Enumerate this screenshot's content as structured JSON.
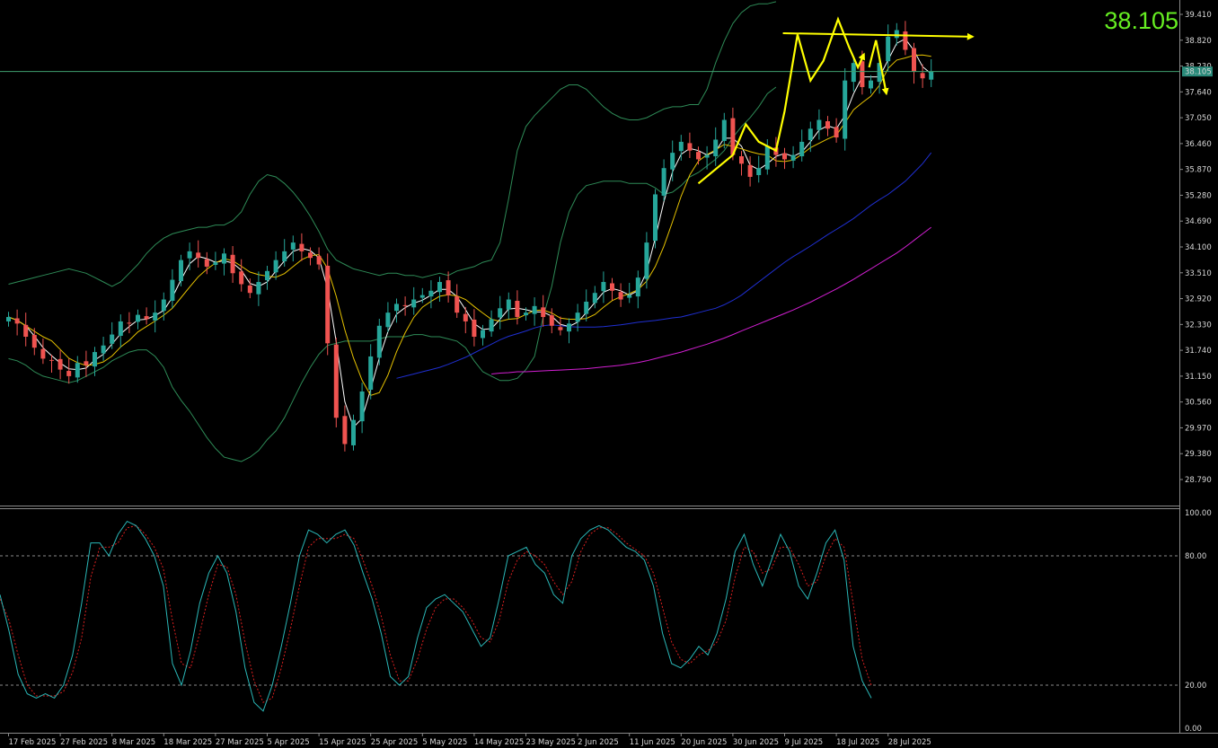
{
  "colors": {
    "background": "#000000",
    "candle_up": "#26a69a",
    "candle_down": "#ef5350",
    "bollinger": "#2e8b57",
    "ma_fast": "#ffffff",
    "ma_slow": "#e6c200",
    "ma_50": "#1f2fd1",
    "ma_200": "#d21fd2",
    "stoch_k": "#2ab7b7",
    "stoch_d": "#d91f1f",
    "annotation": "#ffff00",
    "price_line": "#3f9f6f",
    "last_price_text": "#66ee22"
  },
  "last_price": {
    "big_label": "38.105",
    "tag_label": "38.105",
    "value": 38.105
  },
  "chart_data": [
    {
      "type": "candlestick",
      "title": "",
      "y_ticks": [
        "39.410",
        "38.820",
        "38.230",
        "37.640",
        "37.050",
        "36.460",
        "35.870",
        "35.280",
        "34.690",
        "34.100",
        "33.510",
        "32.920",
        "32.330",
        "31.740",
        "31.150",
        "30.560",
        "29.970",
        "29.380",
        "28.790"
      ],
      "ylim": [
        28.5,
        39.7
      ],
      "x_ticks": [
        "17 Feb 2025",
        "27 Feb 2025",
        "8 Mar 2025",
        "18 Mar 2025",
        "27 Mar 2025",
        "5 Apr 2025",
        "15 Apr 2025",
        "25 Apr 2025",
        "5 May 2025",
        "14 May 2025",
        "23 May 2025",
        "2 Jun 2025",
        "11 Jun 2025",
        "20 Jun 2025",
        "30 Jun 2025",
        "9 Jul 2025",
        "18 Jul 2025",
        "28 Jul 2025"
      ],
      "x_tick_bars": [
        0,
        6,
        12,
        18,
        24,
        30,
        36,
        42,
        48,
        54,
        60,
        66,
        72,
        78,
        84,
        90,
        96,
        102
      ],
      "close": [
        32.5,
        32.35,
        32.05,
        31.8,
        31.55,
        31.5,
        31.3,
        31.15,
        31.45,
        31.4,
        31.7,
        31.85,
        32.1,
        32.4,
        32.35,
        32.55,
        32.45,
        32.6,
        32.9,
        33.35,
        33.8,
        34.0,
        33.85,
        33.65,
        33.75,
        33.95,
        33.5,
        33.25,
        33.05,
        33.3,
        33.55,
        33.8,
        34.0,
        34.2,
        34.0,
        33.85,
        33.7,
        31.9,
        30.2,
        29.6,
        30.15,
        30.8,
        31.6,
        32.3,
        32.6,
        32.8,
        32.75,
        32.9,
        33.0,
        33.1,
        33.3,
        33.0,
        32.6,
        32.4,
        32.05,
        32.2,
        32.45,
        32.7,
        32.9,
        32.5,
        32.6,
        32.75,
        32.5,
        32.3,
        32.2,
        32.35,
        32.6,
        32.85,
        33.05,
        33.3,
        33.1,
        32.9,
        33.0,
        33.4,
        34.2,
        35.3,
        35.9,
        36.25,
        36.5,
        36.3,
        36.1,
        36.2,
        36.55,
        37.0,
        36.2,
        36.0,
        35.7,
        35.9,
        36.4,
        36.2,
        36.1,
        36.2,
        36.5,
        36.8,
        37.0,
        36.8,
        36.6,
        37.9,
        38.3,
        37.75,
        37.9,
        38.3,
        38.9,
        39.05,
        38.6,
        38.1,
        37.95,
        38.105
      ],
      "series": [
        {
          "name": "",
          "kind": "bollinger_upper",
          "values": [
            33.25,
            33.3,
            33.35,
            33.4,
            33.45,
            33.5,
            33.55,
            33.6,
            33.55,
            33.5,
            33.4,
            33.3,
            33.2,
            33.3,
            33.5,
            33.7,
            33.95,
            34.15,
            34.3,
            34.4,
            34.45,
            34.5,
            34.55,
            34.55,
            34.6,
            34.6,
            34.7,
            34.9,
            35.3,
            35.6,
            35.75,
            35.7,
            35.55,
            35.35,
            35.1,
            34.8,
            34.45,
            34.05,
            33.8,
            33.7,
            33.6,
            33.55,
            33.5,
            33.45,
            33.5,
            33.5,
            33.45,
            33.45,
            33.4,
            33.45,
            33.5,
            33.45,
            33.55,
            33.6,
            33.65,
            33.75,
            33.8,
            34.2,
            35.2,
            36.3,
            36.85,
            37.1,
            37.3,
            37.5,
            37.7,
            37.8,
            37.8,
            37.7,
            37.5,
            37.3,
            37.15,
            37.05,
            37.0,
            37.0,
            37.05,
            37.15,
            37.25,
            37.3,
            37.3,
            37.35,
            37.35,
            37.7,
            38.3,
            38.8,
            39.2,
            39.45,
            39.6,
            39.65,
            39.65,
            39.7
          ]
        },
        {
          "name": "",
          "kind": "bollinger_lower",
          "values": [
            31.55,
            31.5,
            31.4,
            31.25,
            31.15,
            31.1,
            31.05,
            31.0,
            31.05,
            31.15,
            31.25,
            31.35,
            31.5,
            31.6,
            31.7,
            31.75,
            31.75,
            31.6,
            31.35,
            30.9,
            30.6,
            30.35,
            30.05,
            29.75,
            29.5,
            29.3,
            29.25,
            29.2,
            29.3,
            29.45,
            29.7,
            29.9,
            30.2,
            30.6,
            31.0,
            31.35,
            31.65,
            31.85,
            31.9,
            31.95,
            31.95,
            31.95,
            31.95,
            32.0,
            32.05,
            32.05,
            32.05,
            32.1,
            32.1,
            32.05,
            32.05,
            32.0,
            31.95,
            31.8,
            31.5,
            31.25,
            31.15,
            31.05,
            31.05,
            31.1,
            31.3,
            31.6,
            32.5,
            33.2,
            34.2,
            34.9,
            35.3,
            35.5,
            35.55,
            35.6,
            35.6,
            35.6,
            35.55,
            35.55,
            35.55,
            35.45,
            35.3,
            35.35,
            35.5,
            35.7,
            35.8,
            35.95,
            36.1,
            36.3,
            36.6,
            36.85,
            37.05,
            37.3,
            37.6,
            37.75
          ]
        },
        {
          "name": "",
          "kind": "ma_50",
          "values": [
            31.1,
            31.15,
            31.2,
            31.25,
            31.3,
            31.35,
            31.42,
            31.5,
            31.58,
            31.68,
            31.78,
            31.88,
            31.98,
            32.06,
            32.12,
            32.18,
            32.25,
            32.3,
            32.32,
            32.3,
            32.28,
            32.27,
            32.27,
            32.27,
            32.28,
            32.3,
            32.32,
            32.35,
            32.38,
            32.4,
            32.42,
            32.45,
            32.48,
            32.5,
            32.55,
            32.6,
            32.65,
            32.7,
            32.78,
            32.88,
            33.0,
            33.15,
            33.3,
            33.45,
            33.6,
            33.75,
            33.88,
            34.0,
            34.12,
            34.25,
            34.38,
            34.5,
            34.62,
            34.75,
            34.9,
            35.05,
            35.18,
            35.3,
            35.45,
            35.6,
            35.8,
            36.0,
            36.25
          ]
        },
        {
          "name": "",
          "kind": "ma_200",
          "values": [
            31.2,
            31.22,
            31.23,
            31.25,
            31.25,
            31.26,
            31.27,
            31.28,
            31.29,
            31.3,
            31.31,
            31.32,
            31.34,
            31.36,
            31.38,
            31.4,
            31.43,
            31.46,
            31.5,
            31.55,
            31.6,
            31.65,
            31.7,
            31.76,
            31.82,
            31.88,
            31.95,
            32.02,
            32.1,
            32.18,
            32.26,
            32.34,
            32.42,
            32.5,
            32.58,
            32.66,
            32.75,
            32.84,
            32.94,
            33.04,
            33.14,
            33.25,
            33.36,
            33.48,
            33.6,
            33.72,
            33.84,
            33.96,
            34.1,
            34.25,
            34.4,
            34.55
          ]
        }
      ]
    },
    {
      "type": "line",
      "title": "",
      "y_ticks": [
        "100.00",
        "80.00",
        "20.00",
        "0.00"
      ],
      "ylim": [
        0,
        100
      ],
      "levels": [
        80,
        20
      ],
      "series": [
        {
          "name": "",
          "kind": "stoch_k",
          "values": [
            62,
            45,
            25,
            16,
            14,
            16,
            14,
            20,
            34,
            58,
            86,
            86,
            80,
            90,
            96,
            94,
            88,
            80,
            66,
            30,
            20,
            36,
            58,
            72,
            80,
            72,
            54,
            28,
            12,
            8,
            20,
            38,
            58,
            80,
            92,
            90,
            86,
            90,
            92,
            85,
            72,
            60,
            44,
            24,
            20,
            24,
            42,
            56,
            60,
            62,
            58,
            54,
            46,
            38,
            42,
            60,
            80,
            82,
            84,
            76,
            72,
            62,
            58,
            80,
            88,
            92,
            94,
            92,
            88,
            84,
            82,
            78,
            66,
            44,
            30,
            28,
            32,
            38,
            34,
            44,
            60,
            82,
            90,
            76,
            66,
            78,
            90,
            82,
            66,
            60,
            72,
            86,
            92,
            78,
            38,
            22,
            14
          ]
        },
        {
          "name": "",
          "kind": "stoch_d",
          "values": [
            60,
            50,
            34,
            20,
            15,
            15,
            15,
            17,
            26,
            42,
            70,
            84,
            84,
            86,
            93,
            94,
            90,
            84,
            74,
            50,
            30,
            28,
            44,
            62,
            76,
            75,
            62,
            40,
            22,
            12,
            14,
            28,
            46,
            66,
            84,
            88,
            88,
            88,
            90,
            88,
            78,
            66,
            52,
            34,
            22,
            22,
            32,
            46,
            56,
            60,
            60,
            56,
            50,
            42,
            40,
            50,
            68,
            78,
            82,
            80,
            76,
            68,
            62,
            68,
            82,
            90,
            93,
            93,
            90,
            86,
            83,
            80,
            72,
            56,
            40,
            32,
            30,
            34,
            36,
            40,
            50,
            70,
            84,
            82,
            72,
            74,
            84,
            84,
            76,
            66,
            68,
            80,
            88,
            84,
            58,
            32,
            20
          ]
        }
      ]
    }
  ]
}
